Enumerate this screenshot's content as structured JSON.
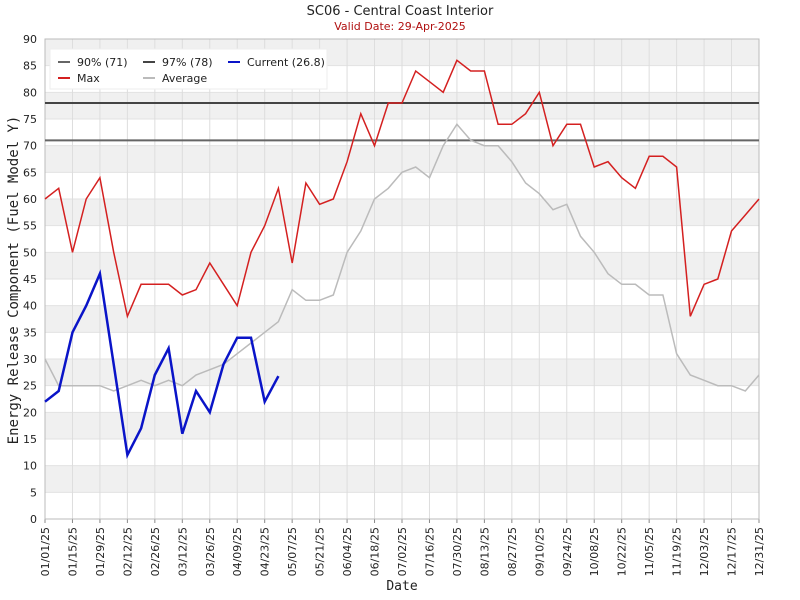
{
  "chart_data": {
    "type": "line",
    "title": "SC06 - Central Coast Interior",
    "subtitle": "Valid Date: 29-Apr-2025",
    "x_label": "Date",
    "y_label": "Energy Release Component (Fuel Model Y)",
    "x": [
      "01/01/25",
      "01/08/25",
      "01/15/25",
      "01/22/25",
      "01/29/25",
      "02/05/25",
      "02/12/25",
      "02/19/25",
      "02/26/25",
      "03/05/25",
      "03/12/25",
      "03/19/25",
      "03/26/25",
      "04/02/25",
      "04/09/25",
      "04/16/25",
      "04/23/25",
      "04/30/25",
      "05/07/25",
      "05/14/25",
      "05/21/25",
      "05/28/25",
      "06/04/25",
      "06/11/25",
      "06/18/25",
      "06/25/25",
      "07/02/25",
      "07/09/25",
      "07/16/25",
      "07/23/25",
      "07/30/25",
      "08/06/25",
      "08/13/25",
      "08/20/25",
      "08/27/25",
      "09/03/25",
      "09/10/25",
      "09/17/25",
      "09/24/25",
      "10/01/25",
      "10/08/25",
      "10/15/25",
      "10/22/25",
      "10/29/25",
      "11/05/25",
      "11/12/25",
      "11/19/25",
      "11/26/25",
      "12/03/25",
      "12/10/25",
      "12/17/25",
      "12/24/25",
      "12/31/25"
    ],
    "series": [
      {
        "name": "Max",
        "color": "#d42020",
        "values": [
          60,
          62,
          50,
          60,
          64,
          50,
          38,
          44,
          44,
          44,
          42,
          43,
          48,
          44,
          40,
          50,
          55,
          62,
          48,
          63,
          59,
          60,
          67,
          76,
          70,
          78,
          78,
          84,
          82,
          80,
          86,
          84,
          84,
          74,
          74,
          76,
          80,
          70,
          74,
          74,
          66,
          67,
          64,
          62,
          68,
          68,
          66,
          38,
          44,
          45,
          54,
          57,
          60
        ]
      },
      {
        "name": "Average",
        "color": "#bbbbbb",
        "values": [
          30,
          25,
          25,
          25,
          25,
          24,
          25,
          26,
          25,
          26,
          25,
          27,
          28,
          29,
          31,
          33,
          35,
          37,
          43,
          41,
          41,
          42,
          50,
          54,
          60,
          62,
          65,
          66,
          64,
          70,
          74,
          71,
          70,
          70,
          67,
          63,
          61,
          58,
          59,
          53,
          50,
          46,
          44,
          44,
          42,
          42,
          31,
          27,
          26,
          25,
          25,
          24,
          27
        ]
      },
      {
        "name": "Current (26.8)",
        "color": "#0a14c8",
        "values": [
          22,
          24,
          35,
          40,
          46,
          29,
          12,
          17,
          27,
          32,
          16,
          24,
          20,
          29,
          34,
          34,
          22,
          26.8,
          null,
          null,
          null,
          null,
          null,
          null,
          null,
          null,
          null,
          null,
          null,
          null,
          null,
          null,
          null,
          null,
          null,
          null,
          null,
          null,
          null,
          null,
          null,
          null,
          null,
          null,
          null,
          null,
          null,
          null,
          null,
          null,
          null,
          null,
          null
        ]
      }
    ],
    "reference_lines": [
      {
        "name": "90% (71)",
        "value": 71,
        "color": "#666666"
      },
      {
        "name": "97% (78)",
        "value": 78,
        "color": "#444444"
      }
    ],
    "xlim": [
      "01/01/25",
      "12/31/25"
    ],
    "xticks": [
      "01/01/25",
      "01/15/25",
      "01/29/25",
      "02/12/25",
      "02/26/25",
      "03/12/25",
      "03/26/25",
      "04/09/25",
      "04/23/25",
      "05/07/25",
      "05/21/25",
      "06/04/25",
      "06/18/25",
      "07/02/25",
      "07/16/25",
      "07/30/25",
      "08/13/25",
      "08/27/25",
      "09/10/25",
      "09/24/25",
      "10/08/25",
      "10/22/25",
      "11/05/25",
      "11/19/25",
      "12/03/25",
      "12/17/25",
      "12/31/25"
    ],
    "ylim": [
      0,
      90
    ],
    "yticks": [
      0,
      5,
      10,
      15,
      20,
      25,
      30,
      35,
      40,
      45,
      50,
      55,
      60,
      65,
      70,
      75,
      80,
      85,
      90
    ],
    "grid": true
  }
}
